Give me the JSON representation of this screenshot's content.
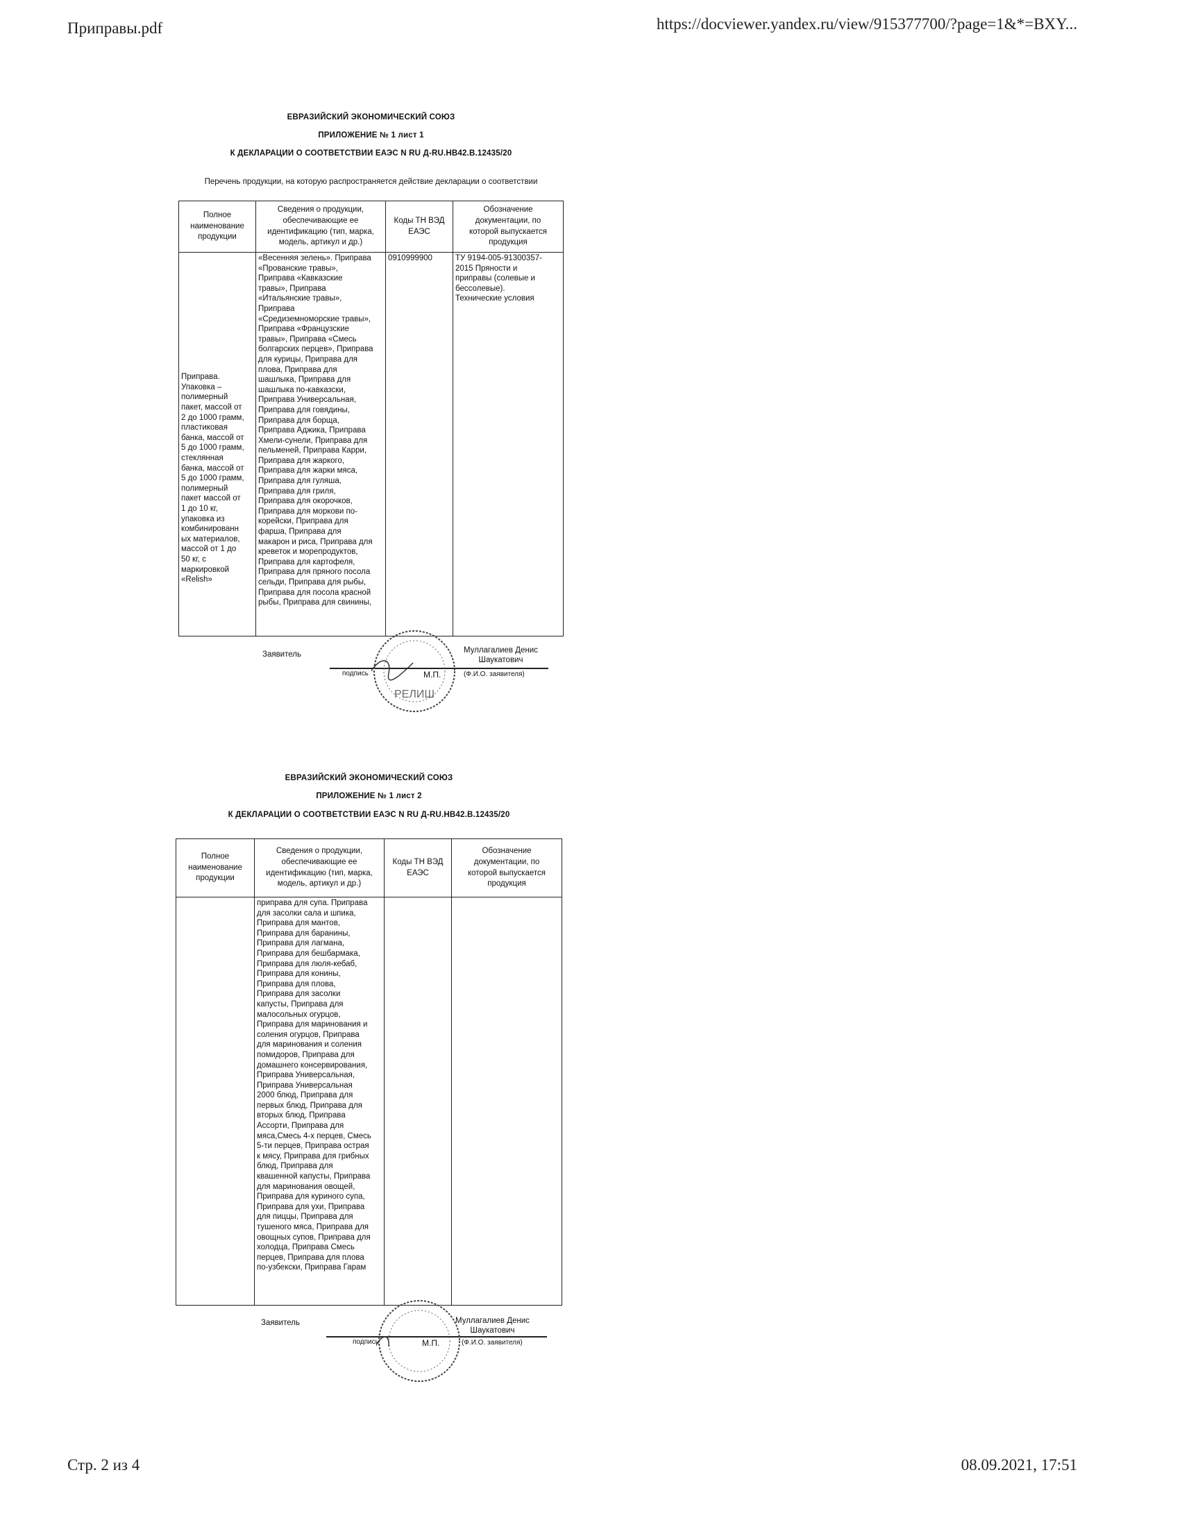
{
  "browser": {
    "file_title": "Приправы.pdf",
    "url": "https://docviewer.yandex.ru/view/915377700/?page=1&*=BXY...",
    "page_indicator": "Стр. 2 из 4",
    "datetime": "08.09.2021, 17:51"
  },
  "sheets": [
    {
      "org": "ЕВРАЗИЙСКИЙ ЭКОНОМИЧЕСКИЙ СОЮЗ",
      "appendix": "ПРИЛОЖЕНИЕ № 1 лист 1",
      "declaration": "К ДЕКЛАРАЦИИ О СООТВЕТСТВИИ ЕАЭС N RU Д-RU.НВ42.В.12435/20",
      "subtitle": "Перечень продукции, на которую распространяется действие декларации о соответствии",
      "headers": [
        "Полное\nнаименование\nпродукции",
        "Сведения о продукции,\nобеспечивающие ее\nидентификацию (тип, марка,\nмодель, артикул и др.)",
        "Коды ТН ВЭД\nЕАЭС",
        "Обозначение\nдокументации, по\nкоторой выпускается\nпродукция"
      ],
      "row": {
        "name": "Приправа.\nУпаковка –\nполимерный\nпакет, массой от\n2 до 1000 грамм,\nпластиковая\nбанка, массой от\n5 до 1000 грамм,\nстеклянная\nбанка, массой от\n5 до 1000 грамм,\nполимерный\nпакет массой от\n1 до 10 кг,\nупаковка из\nкомбинированн\nых материалов,\nмассой от 1 до\n50 кг, с\nмаркировкой\n«Relish»",
        "info": "«Весенняя зелень». Приправа\n«Прованские травы»,\nПриправа «Кавказские\nтравы», Приправа\n«Итальянские травы»,\nПриправа\n«Средиземноморские травы»,\nПриправа «Французские\nтравы», Приправа «Смесь\nболгарских перцев», Приправа\nдля курицы, Приправа для\nплова, Приправа для\nшашлыка, Приправа для\nшашлыка по-кавказски,\nПриправа Универсальная,\nПриправа для говядины,\nПриправа для борща,\nПриправа Аджика, Приправа\nХмели-сунели, Приправа для\nпельменей, Приправа Карри,\nПриправа для жаркого,\nПриправа для жарки мяса,\nПриправа для гуляша,\nПриправа для гриля,\nПриправа для окорочков,\nПриправа для моркови по-\nкорейски, Приправа для\nфарша, Приправа для\nмакарон и риса, Приправа для\nкреветок и морепродуктов,\nПриправа для картофеля,\nПриправа для пряного посола\nсельди, Приправа для рыбы,\nПриправа для посола красной\nрыбы, Приправа для свинины,",
        "code": "0910999900",
        "doc": "ТУ 9194-005-91300357-\n2015 Пряности и\nприправы (солевые и\nбессолевые).\nТехнические условия"
      },
      "signature": {
        "applicant_label": "Заявитель",
        "name": "Муллагалиев Денис\nШаукатович",
        "sign_caption": "подпись",
        "stamp_caption": "М.П.",
        "fio_caption": "(Ф.И.О. заявителя)"
      }
    },
    {
      "org": "ЕВРАЗИЙСКИЙ ЭКОНОМИЧЕСКИЙ СОЮЗ",
      "appendix": "ПРИЛОЖЕНИЕ № 1 лист 2",
      "declaration": "К ДЕКЛАРАЦИИ О СООТВЕТСТВИИ ЕАЭС N RU Д-RU.НВ42.В.12435/20",
      "headers": [
        "Полное\nнаименование\nпродукции",
        "Сведения о продукции,\nобеспечивающие ее\nидентификацию (тип, марка,\nмодель, артикул и др.)",
        "Коды ТН ВЭД\nЕАЭС",
        "Обозначение\nдокументации, по\nкоторой выпускается\nпродукция"
      ],
      "row": {
        "name": "",
        "info": "приправа для супа. Приправа\nдля засолки сала и шпика,\nПриправа для мантов,\nПриправа для баранины,\nПриправа для лагмана,\nПриправа для бешбармака,\nПриправа для люля-кебаб,\nПриправа для конины,\nПриправа для плова,\nПриправа для засолки\nкапусты, Приправа для\nмалосольных огурцов,\nПриправа для маринования и\nсоления огурцов, Приправа\nдля маринования и соления\nпомидоров, Приправа для\nдомашнего консервирования,\nПриправа Универсальная,\nПриправа Универсальная\n2000 блюд, Приправа для\nпервых блюд, Приправа для\nвторых блюд, Приправа\nАссорти, Приправа для\nмяса,Смесь 4-х перцев, Смесь\n5-ти перцев, Приправа острая\nк мясу, Приправа для грибных\nблюд, Приправа для\nквашенной капусты, Приправа\nдля маринования овощей,\nПриправа для куриного супа,\nПриправа для ухи, Приправа\nдля пиццы, Приправа для\nтушеного мяса, Приправа для\nовощных супов, Приправа для\nхолодца, Приправа Смесь\nперцев, Приправа для плова\nпо-узбекски, Приправа Гарам",
        "code": "",
        "doc": ""
      },
      "signature": {
        "applicant_label": "Заявитель",
        "name": "Муллагалиев Денис\nШаукатович",
        "sign_caption": "подпись",
        "stamp_caption": "М.П.",
        "fio_caption": "(Ф.И.О. заявителя)"
      }
    }
  ],
  "stamp": {
    "logo_text": "РЕЛИШ",
    "color": "#333333"
  }
}
